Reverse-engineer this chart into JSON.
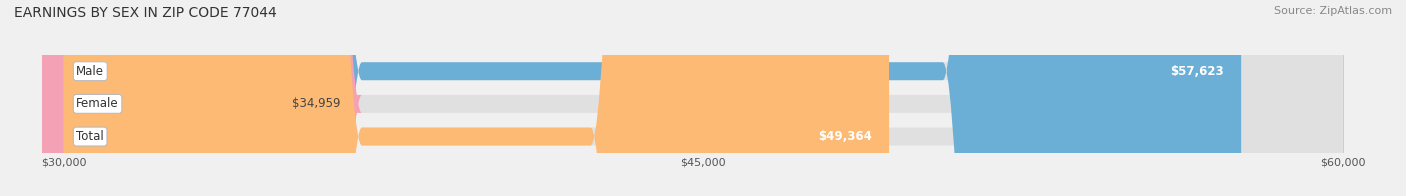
{
  "title": "EARNINGS BY SEX IN ZIP CODE 77044",
  "source": "Source: ZipAtlas.com",
  "categories": [
    "Male",
    "Female",
    "Total"
  ],
  "values": [
    57623,
    34959,
    49364
  ],
  "bar_colors": [
    "#6baed6",
    "#f4a0b5",
    "#fdba74"
  ],
  "x_min": 30000,
  "x_max": 60000,
  "x_ticks": [
    30000,
    45000,
    60000
  ],
  "x_tick_labels": [
    "$30,000",
    "$45,000",
    "$60,000"
  ],
  "value_labels": [
    "$57,623",
    "$34,959",
    "$49,364"
  ],
  "title_fontsize": 10,
  "source_fontsize": 8,
  "bar_label_fontsize": 8.5,
  "value_fontsize": 8.5,
  "background_color": "#f0f0f0"
}
